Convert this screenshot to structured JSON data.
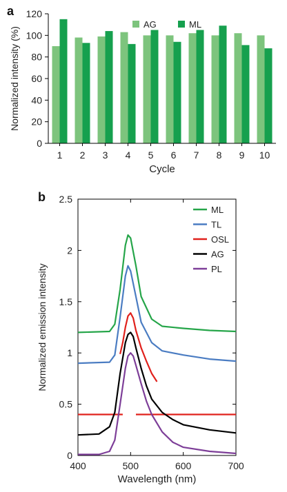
{
  "chart_data": [
    {
      "type": "bar",
      "panel_label": "a",
      "xlabel": "Cycle",
      "ylabel": "Normalized intensity (%)",
      "categories": [
        "1",
        "2",
        "3",
        "4",
        "5",
        "6",
        "7",
        "8",
        "9",
        "10"
      ],
      "ylim": [
        0,
        120
      ],
      "yticks": [
        0,
        20,
        40,
        60,
        80,
        100,
        120
      ],
      "legend_position": "top-center",
      "series": [
        {
          "name": "AG",
          "color": "#7dc47d",
          "values": [
            90,
            98,
            99,
            103,
            100,
            100,
            102,
            100,
            102,
            100
          ]
        },
        {
          "name": "ML",
          "color": "#16a04e",
          "values": [
            115,
            93,
            104,
            92,
            105,
            94,
            105,
            109,
            91,
            88
          ]
        }
      ]
    },
    {
      "type": "line",
      "panel_label": "b",
      "xlabel": "Wavelength (nm)",
      "ylabel": "Normalized emission intensity",
      "xlim": [
        400,
        700
      ],
      "ylim": [
        0,
        2.5
      ],
      "xticks": [
        400,
        500,
        600,
        700
      ],
      "yticks": [
        0,
        0.5,
        1,
        1.5,
        2,
        2.5
      ],
      "ytick_labels": [
        "0",
        "0.5",
        "1",
        "1.5",
        "2",
        "2.5"
      ],
      "legend_position": "top-right",
      "series": [
        {
          "name": "ML",
          "color": "#25a549",
          "x": [
            400,
            460,
            470,
            480,
            490,
            495,
            500,
            510,
            520,
            540,
            560,
            600,
            650,
            700
          ],
          "y": [
            1.2,
            1.21,
            1.28,
            1.62,
            2.05,
            2.15,
            2.12,
            1.85,
            1.55,
            1.33,
            1.26,
            1.24,
            1.22,
            1.21
          ]
        },
        {
          "name": "TL",
          "color": "#4a7cc2",
          "x": [
            400,
            460,
            470,
            480,
            490,
            495,
            500,
            510,
            520,
            540,
            560,
            600,
            650,
            700
          ],
          "y": [
            0.9,
            0.91,
            0.98,
            1.35,
            1.75,
            1.85,
            1.8,
            1.55,
            1.3,
            1.1,
            1.02,
            0.98,
            0.94,
            0.92
          ]
        },
        {
          "name": "OSL",
          "color": "#e0201b",
          "segments": [
            {
              "x": [
                400,
                485
              ],
              "y": [
                0.4,
                0.4
              ]
            },
            {
              "x": [
                480,
                485,
                490,
                495,
                500,
                505,
                510,
                520,
                530,
                540,
                550
              ],
              "y": [
                0.99,
                1.1,
                1.25,
                1.36,
                1.39,
                1.34,
                1.22,
                1.05,
                0.92,
                0.8,
                0.72
              ]
            },
            {
              "x": [
                510,
                700
              ],
              "y": [
                0.4,
                0.4
              ]
            }
          ]
        },
        {
          "name": "AG",
          "color": "#000000",
          "x": [
            400,
            440,
            460,
            470,
            480,
            490,
            495,
            500,
            505,
            510,
            520,
            530,
            540,
            560,
            580,
            600,
            650,
            700
          ],
          "y": [
            0.2,
            0.21,
            0.28,
            0.42,
            0.8,
            1.1,
            1.18,
            1.2,
            1.16,
            1.05,
            0.85,
            0.68,
            0.55,
            0.42,
            0.35,
            0.3,
            0.25,
            0.22
          ]
        },
        {
          "name": "PL",
          "color": "#7d3e98",
          "x": [
            400,
            440,
            460,
            470,
            480,
            490,
            495,
            500,
            505,
            510,
            520,
            530,
            540,
            560,
            580,
            600,
            650,
            700
          ],
          "y": [
            0.01,
            0.01,
            0.04,
            0.15,
            0.5,
            0.85,
            0.97,
            1.0,
            0.97,
            0.88,
            0.7,
            0.53,
            0.4,
            0.23,
            0.13,
            0.08,
            0.04,
            0.02
          ]
        }
      ]
    }
  ]
}
